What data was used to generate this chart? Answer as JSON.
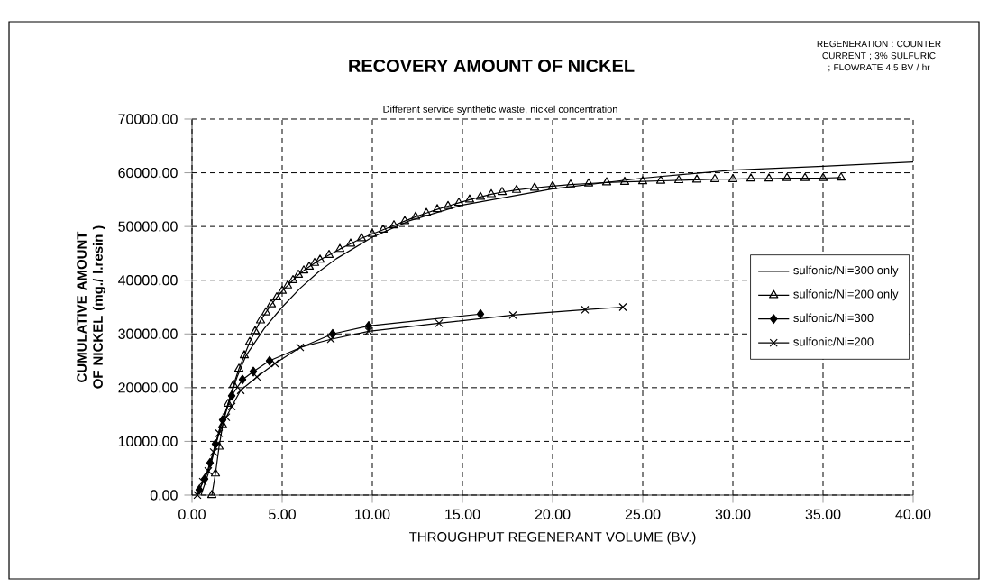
{
  "chart_data": {
    "type": "line",
    "title": "RECOVERY AMOUNT OF NICKEL",
    "subtitle": "Different service synthetic waste, nickel concentration",
    "annotations": [
      "REGENERATION : COUNTER CURRENT ; 3% SULFURIC ; FLOWRATE 4.5 BV / hr"
    ],
    "xlabel": "THROUGHPUT  REGENERANT  VOLUME  (BV.)",
    "ylabel": "CUMULATIVE AMOUNT OF NICKEL  (mg./ l.resin )",
    "xlim": [
      0,
      40
    ],
    "ylim": [
      0,
      70000
    ],
    "xticks": [
      {
        "value": 0,
        "label": "0.00"
      },
      {
        "value": 5,
        "label": "5.00"
      },
      {
        "value": 10,
        "label": "10.00"
      },
      {
        "value": 15,
        "label": "15.00"
      },
      {
        "value": 20,
        "label": "20.00"
      },
      {
        "value": 25,
        "label": "25.00"
      },
      {
        "value": 30,
        "label": "30.00"
      },
      {
        "value": 35,
        "label": "35.00"
      },
      {
        "value": 40,
        "label": "40.00"
      }
    ],
    "yticks": [
      {
        "value": 0,
        "label": "0.00"
      },
      {
        "value": 10000,
        "label": "10000.00"
      },
      {
        "value": 20000,
        "label": "20000.00"
      },
      {
        "value": 30000,
        "label": "30000.00"
      },
      {
        "value": 40000,
        "label": "40000.00"
      },
      {
        "value": 50000,
        "label": "50000.00"
      },
      {
        "value": 60000,
        "label": "60000.00"
      },
      {
        "value": 70000,
        "label": "70000.00"
      }
    ],
    "grid": true,
    "legend": "right",
    "line_style": "solid",
    "series": [
      {
        "name": "sulfonic/Ni=300 only",
        "color": "#000000",
        "marker": "none",
        "x": [
          0.5,
          1,
          1.5,
          2,
          2.5,
          3,
          4,
          5,
          6,
          7,
          8,
          10,
          12,
          15,
          20,
          25,
          30,
          35,
          40
        ],
        "values": [
          0,
          5000,
          12000,
          17000,
          22000,
          26000,
          31000,
          35000,
          38500,
          41500,
          44000,
          48000,
          51000,
          54000,
          57000,
          59000,
          60500,
          61200,
          62000
        ]
      },
      {
        "name": "sulfonic/Ni=200 only",
        "color": "#000000",
        "marker": "triangle",
        "x": [
          1.1,
          1.3,
          1.5,
          1.7,
          2.0,
          2.3,
          2.6,
          2.9,
          3.2,
          3.5,
          3.8,
          4.1,
          4.4,
          4.7,
          5.0,
          5.3,
          5.6,
          5.9,
          6.2,
          6.5,
          6.8,
          7.1,
          7.6,
          8.2,
          8.8,
          9.4,
          10.0,
          10.6,
          11.2,
          11.8,
          12.4,
          13.0,
          13.6,
          14.2,
          14.8,
          15.4,
          16,
          16.6,
          17.2,
          18,
          19,
          20,
          21,
          22,
          23,
          24,
          25,
          26,
          27,
          28,
          29,
          30,
          31,
          32,
          33,
          34,
          35,
          36
        ],
        "values": [
          0,
          4000,
          9000,
          13000,
          17000,
          20500,
          23500,
          26000,
          28500,
          30500,
          32500,
          34000,
          35500,
          36800,
          38000,
          39000,
          40000,
          41000,
          41800,
          42500,
          43200,
          43800,
          44700,
          45800,
          46800,
          47800,
          48600,
          49400,
          50200,
          51000,
          51800,
          52500,
          53200,
          53800,
          54400,
          55000,
          55500,
          56000,
          56400,
          56800,
          57200,
          57500,
          57800,
          58000,
          58200,
          58300,
          58400,
          58500,
          58600,
          58700,
          58800,
          58800,
          58900,
          58900,
          59000,
          59000,
          59000,
          59100
        ]
      },
      {
        "name": "sulfonic/Ni=300",
        "color": "#000000",
        "marker": "diamond",
        "x": [
          0.4,
          0.7,
          1.0,
          1.3,
          1.7,
          2.2,
          2.8,
          3.4,
          4.3,
          7.8,
          9.8,
          16
        ],
        "values": [
          1000,
          3000,
          6000,
          9500,
          14000,
          18500,
          21500,
          23000,
          25000,
          30000,
          31500,
          33700
        ]
      },
      {
        "name": "sulfonic/Ni=200",
        "color": "#000000",
        "marker": "cross",
        "x": [
          0.3,
          0.6,
          0.9,
          1.2,
          1.5,
          1.9,
          2.2,
          2.7,
          3.6,
          4.6,
          6.0,
          7.7,
          9.8,
          13.7,
          17.8,
          21.8,
          23.9
        ],
        "values": [
          0,
          2500,
          4500,
          8000,
          11500,
          14500,
          16500,
          19500,
          22000,
          24500,
          27500,
          29000,
          30500,
          32000,
          33500,
          34500,
          35000
        ]
      }
    ]
  }
}
